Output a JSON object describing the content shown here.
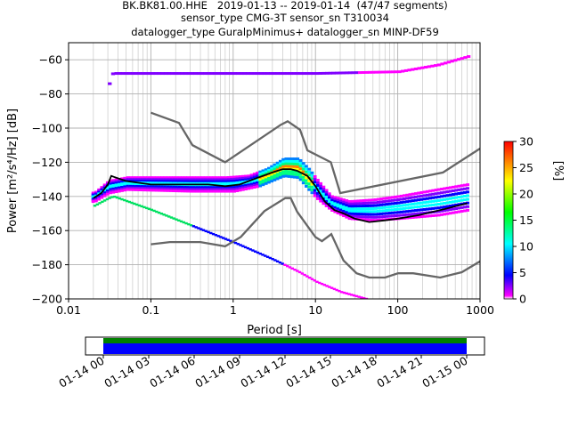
{
  "chart_data": {
    "type": "ppsd",
    "title": [
      "BK.BK81.00.HHE   2019-01-13 -- 2019-01-14  (47/47 segments)",
      "sensor_type CMG-3T sensor_sn T310034",
      "datalogger_type GuralpMinimus+ datalogger_sn MINP-DF59"
    ],
    "xlabel": "Period [s]",
    "ylabel": "Power [m²/s⁴/Hz] [dB]",
    "xscale": "log",
    "xlim": [
      0.01,
      1000
    ],
    "ylim": [
      -200,
      -50
    ],
    "grid": true,
    "x_ticks": [
      {
        "value": 0.01,
        "label": "0.01"
      },
      {
        "value": 0.1,
        "label": "0.1"
      },
      {
        "value": 1,
        "label": "1"
      },
      {
        "value": 10,
        "label": "10"
      },
      {
        "value": 100,
        "label": "100"
      },
      {
        "value": 1000,
        "label": "1000"
      }
    ],
    "y_ticks": [
      {
        "value": -60,
        "label": "−60"
      },
      {
        "value": -80,
        "label": "−80"
      },
      {
        "value": -100,
        "label": "−100"
      },
      {
        "value": -120,
        "label": "−120"
      },
      {
        "value": -140,
        "label": "−140"
      },
      {
        "value": -160,
        "label": "−160"
      },
      {
        "value": -180,
        "label": "−180"
      },
      {
        "value": -200,
        "label": "−200"
      }
    ],
    "colorbar": {
      "label": "[%]",
      "range": [
        0,
        30
      ],
      "ticks": [
        "0",
        "5",
        "10",
        "15",
        "20",
        "25",
        "30"
      ]
    },
    "series": [
      {
        "role": "noise-model-high",
        "color": "#666666",
        "points": [
          [
            0.1,
            -91
          ],
          [
            0.22,
            -97
          ],
          [
            0.32,
            -110
          ],
          [
            0.8,
            -120
          ],
          [
            3.8,
            -98
          ],
          [
            4.6,
            -96
          ],
          [
            6.5,
            -101
          ],
          [
            8,
            -113
          ],
          [
            15.4,
            -120
          ],
          [
            20,
            -138
          ],
          [
            354.8,
            -126
          ],
          [
            1000,
            -112
          ]
        ]
      },
      {
        "role": "noise-model-low",
        "color": "#666666",
        "points": [
          [
            0.1,
            -168
          ],
          [
            0.17,
            -166.7
          ],
          [
            0.4,
            -166.7
          ],
          [
            0.8,
            -169.2
          ],
          [
            1.24,
            -163.7
          ],
          [
            2.4,
            -148.6
          ],
          [
            4.3,
            -141
          ],
          [
            5,
            -141
          ],
          [
            6,
            -149
          ],
          [
            10,
            -163.8
          ],
          [
            12,
            -166.2
          ],
          [
            15.6,
            -162.1
          ],
          [
            21.9,
            -177.5
          ],
          [
            31.6,
            -185
          ],
          [
            45,
            -187.5
          ],
          [
            70,
            -187.5
          ],
          [
            101,
            -185
          ],
          [
            154,
            -185
          ],
          [
            328,
            -187.5
          ],
          [
            600,
            -184.4
          ],
          [
            1000,
            -178
          ]
        ]
      },
      {
        "role": "mean",
        "color": "#000000",
        "points": [
          [
            0.02,
            -141
          ],
          [
            0.025,
            -138
          ],
          [
            0.03,
            -133
          ],
          [
            0.033,
            -128
          ],
          [
            0.05,
            -131
          ],
          [
            0.1,
            -133
          ],
          [
            0.5,
            -133
          ],
          [
            0.8,
            -134
          ],
          [
            1.2,
            -133
          ],
          [
            2,
            -129
          ],
          [
            3,
            -126
          ],
          [
            4,
            -124
          ],
          [
            5,
            -124
          ],
          [
            6,
            -125
          ],
          [
            8,
            -128
          ],
          [
            10,
            -134
          ],
          [
            13,
            -143
          ],
          [
            17,
            -148
          ],
          [
            22,
            -150
          ],
          [
            30,
            -153
          ],
          [
            45,
            -155
          ],
          [
            70,
            -154
          ],
          [
            100,
            -153
          ],
          [
            180,
            -151
          ],
          [
            400,
            -147
          ],
          [
            700,
            -144
          ]
        ]
      },
      {
        "role": "mode-upper",
        "color": "#00c050",
        "points": [
          [
            0.02,
            -138
          ],
          [
            0.03,
            -131
          ],
          [
            0.05,
            -129
          ],
          [
            0.2,
            -129
          ],
          [
            0.8,
            -129
          ],
          [
            1.5,
            -128
          ],
          [
            2.5,
            -124
          ],
          [
            4,
            -118
          ],
          [
            6,
            -118
          ],
          [
            8,
            -124
          ],
          [
            10,
            -130
          ],
          [
            15,
            -140
          ],
          [
            25,
            -143
          ],
          [
            50,
            -142
          ],
          [
            100,
            -140
          ],
          [
            300,
            -136
          ],
          [
            700,
            -133
          ]
        ]
      },
      {
        "role": "mode-lower",
        "color": "#00a0ff",
        "points": [
          [
            0.02,
            -143
          ],
          [
            0.03,
            -138
          ],
          [
            0.05,
            -136
          ],
          [
            0.3,
            -137
          ],
          [
            1,
            -137
          ],
          [
            2,
            -134
          ],
          [
            4,
            -128
          ],
          [
            6,
            -129
          ],
          [
            8,
            -136
          ],
          [
            10,
            -141
          ],
          [
            15,
            -148
          ],
          [
            25,
            -153
          ],
          [
            50,
            -154
          ],
          [
            100,
            -153
          ],
          [
            300,
            -151
          ],
          [
            700,
            -148
          ]
        ]
      },
      {
        "role": "low-tail",
        "color": "#00e060",
        "points": [
          [
            0.019,
            -146
          ],
          [
            0.03,
            -141
          ],
          [
            0.034,
            -140
          ],
          [
            0.1,
            -148
          ],
          [
            0.3,
            -157
          ],
          [
            1,
            -167
          ],
          [
            3,
            -177
          ],
          [
            6,
            -184
          ],
          [
            10,
            -190
          ],
          [
            20,
            -196
          ],
          [
            40,
            -200
          ]
        ]
      },
      {
        "role": "high-tail",
        "color": "#9000d0",
        "points": [
          [
            0.03,
            -74
          ],
          [
            0.033,
            -68
          ],
          [
            0.1,
            -68
          ],
          [
            1,
            -68
          ],
          [
            10,
            -68
          ],
          [
            100,
            -67
          ],
          [
            300,
            -63
          ],
          [
            500,
            -60
          ],
          [
            700,
            -58
          ]
        ]
      }
    ]
  },
  "timeline": {
    "ticks": [
      "01-14 00",
      "01-14 03",
      "01-14 06",
      "01-14 09",
      "01-14 12",
      "01-14 15",
      "01-14 18",
      "01-14 21",
      "01-15 00"
    ],
    "color_top": "#008000",
    "color_bottom": "#0000ff"
  }
}
